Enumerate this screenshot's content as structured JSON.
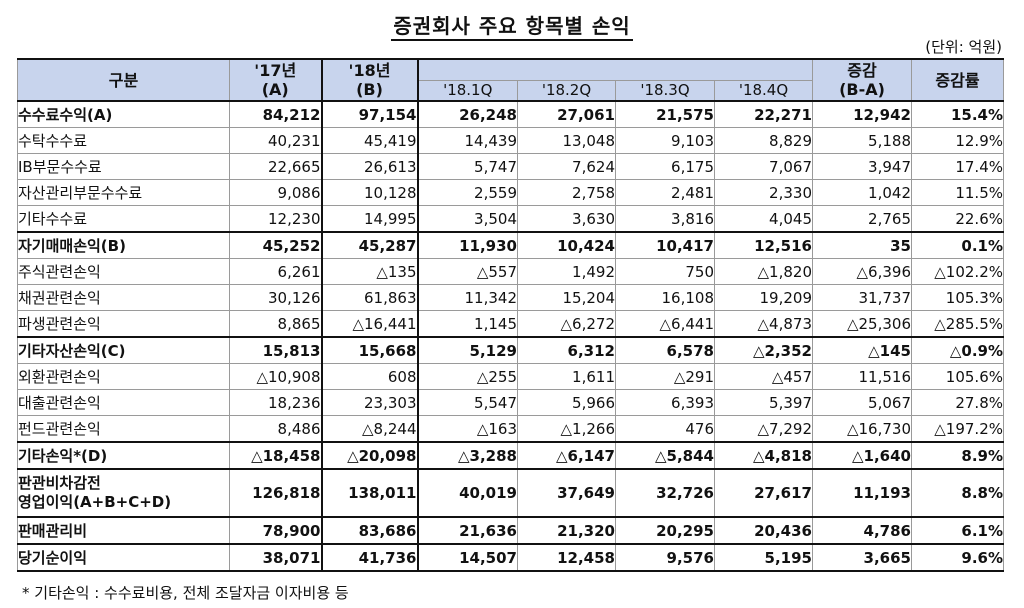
{
  "title": "증권회사 주요 항목별 손익",
  "unit": "(단위: 억원)",
  "headers": {
    "category": "구분",
    "y17_line1": "'17년",
    "y17_line2": "(A)",
    "y18_line1": "'18년",
    "y18_line2": "(B)",
    "q1": "'18.1Q",
    "q2": "'18.2Q",
    "q3": "'18.3Q",
    "q4": "'18.4Q",
    "change_line1": "증감",
    "change_line2": "(B-A)",
    "rate": "증감률"
  },
  "rows": [
    {
      "label": "수수료수익(A)",
      "values": [
        "84,212",
        "97,154",
        "26,248",
        "27,061",
        "21,575",
        "22,271",
        "12,942",
        "15.4%"
      ]
    },
    {
      "label": "수탁수수료",
      "values": [
        "40,231",
        "45,419",
        "14,439",
        "13,048",
        "9,103",
        "8,829",
        "5,188",
        "12.9%"
      ]
    },
    {
      "label": "IB부문수수료",
      "values": [
        "22,665",
        "26,613",
        "5,747",
        "7,624",
        "6,175",
        "7,067",
        "3,947",
        "17.4%"
      ]
    },
    {
      "label": "자산관리부문수수료",
      "values": [
        "9,086",
        "10,128",
        "2,559",
        "2,758",
        "2,481",
        "2,330",
        "1,042",
        "11.5%"
      ]
    },
    {
      "label": "기타수수료",
      "values": [
        "12,230",
        "14,995",
        "3,504",
        "3,630",
        "3,816",
        "4,045",
        "2,765",
        "22.6%"
      ]
    },
    {
      "label": "자기매매손익(B)",
      "values": [
        "45,252",
        "45,287",
        "11,930",
        "10,424",
        "10,417",
        "12,516",
        "35",
        "0.1%"
      ]
    },
    {
      "label": "주식관련손익",
      "values": [
        "6,261",
        "△135",
        "△557",
        "1,492",
        "750",
        "△1,820",
        "△6,396",
        "△102.2%"
      ]
    },
    {
      "label": "채권관련손익",
      "values": [
        "30,126",
        "61,863",
        "11,342",
        "15,204",
        "16,108",
        "19,209",
        "31,737",
        "105.3%"
      ]
    },
    {
      "label": "파생관련손익",
      "values": [
        "8,865",
        "△16,441",
        "1,145",
        "△6,272",
        "△6,441",
        "△4,873",
        "△25,306",
        "△285.5%"
      ]
    },
    {
      "label": "기타자산손익(C)",
      "values": [
        "15,813",
        "15,668",
        "5,129",
        "6,312",
        "6,578",
        "△2,352",
        "△145",
        "△0.9%"
      ]
    },
    {
      "label": "외환관련손익",
      "values": [
        "△10,908",
        "608",
        "△255",
        "1,611",
        "△291",
        "△457",
        "11,516",
        "105.6%"
      ]
    },
    {
      "label": "대출관련손익",
      "values": [
        "18,236",
        "23,303",
        "5,547",
        "5,966",
        "6,393",
        "5,397",
        "5,067",
        "27.8%"
      ]
    },
    {
      "label": "펀드관련손익",
      "values": [
        "8,486",
        "△8,244",
        "△163",
        "△1,266",
        "476",
        "△7,292",
        "△16,730",
        "△197.2%"
      ]
    },
    {
      "label": "기타손익*(D)",
      "values": [
        "△18,458",
        "△20,098",
        "△3,288",
        "△6,147",
        "△5,844",
        "△4,818",
        "△1,640",
        "8.9%"
      ]
    },
    {
      "label_line1": "판관비차감전",
      "label_line2": "영업이익(A+B+C+D)",
      "values": [
        "126,818",
        "138,011",
        "40,019",
        "37,649",
        "32,726",
        "27,617",
        "11,193",
        "8.8%"
      ]
    },
    {
      "label": "판매관리비",
      "values": [
        "78,900",
        "83,686",
        "21,636",
        "21,320",
        "20,295",
        "20,436",
        "4,786",
        "6.1%"
      ]
    },
    {
      "label": "당기순이익",
      "values": [
        "38,071",
        "41,736",
        "14,507",
        "12,458",
        "9,576",
        "5,195",
        "3,665",
        "9.6%"
      ]
    }
  ],
  "footnote": "* 기타손익 : 수수료비용, 전체 조달자금 이자비용 등"
}
